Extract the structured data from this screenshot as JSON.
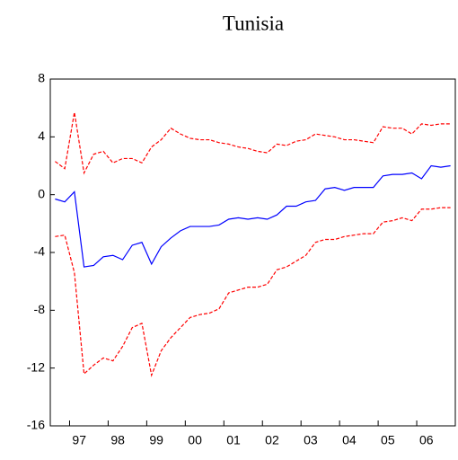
{
  "chart_data": {
    "type": "line",
    "title": "Tunisia",
    "categories": [
      null,
      null,
      null,
      "97",
      null,
      null,
      null,
      "98",
      null,
      null,
      null,
      "99",
      null,
      null,
      null,
      "00",
      null,
      null,
      null,
      "01",
      null,
      null,
      null,
      "02",
      null,
      null,
      null,
      "03",
      null,
      null,
      null,
      "04",
      null,
      null,
      null,
      "05",
      null,
      null,
      null,
      "06",
      null,
      null
    ],
    "ylim": [
      -16,
      8
    ],
    "yticks": [
      -16,
      -12,
      -8,
      -4,
      0,
      4,
      8
    ],
    "series": [
      {
        "color": "#0000ff",
        "dashed": false,
        "values": [
          -0.3,
          -0.5,
          0.2,
          -5.0,
          -4.9,
          -4.3,
          -4.2,
          -4.5,
          -3.5,
          -3.3,
          -4.8,
          -3.6,
          -3.0,
          -2.5,
          -2.2,
          -2.2,
          -2.2,
          -2.1,
          -1.7,
          -1.6,
          -1.7,
          -1.6,
          -1.7,
          -1.4,
          -0.8,
          -0.8,
          -0.5,
          -0.4,
          0.4,
          0.5,
          0.3,
          0.5,
          0.5,
          0.5,
          1.3,
          1.4,
          1.4,
          1.5,
          1.1,
          2.0,
          1.9,
          2.0
        ]
      },
      {
        "color": "#ff0000",
        "dashed": true,
        "values": [
          2.3,
          1.8,
          5.7,
          1.5,
          2.8,
          3.0,
          2.2,
          2.5,
          2.5,
          2.2,
          3.3,
          3.8,
          4.6,
          4.2,
          3.9,
          3.8,
          3.8,
          3.6,
          3.5,
          3.3,
          3.2,
          3.0,
          2.9,
          3.5,
          3.4,
          3.7,
          3.8,
          4.2,
          4.1,
          4.0,
          3.8,
          3.8,
          3.7,
          3.6,
          4.7,
          4.6,
          4.6,
          4.2,
          4.9,
          4.8,
          4.9,
          4.9
        ]
      },
      {
        "color": "#ff0000",
        "dashed": true,
        "values": [
          -2.9,
          -2.8,
          -5.4,
          -12.4,
          -11.8,
          -11.3,
          -11.5,
          -10.5,
          -9.2,
          -8.9,
          -12.5,
          -10.8,
          -9.9,
          -9.2,
          -8.5,
          -8.3,
          -8.2,
          -7.9,
          -6.8,
          -6.6,
          -6.4,
          -6.4,
          -6.2,
          -5.2,
          -5.0,
          -4.6,
          -4.2,
          -3.3,
          -3.1,
          -3.1,
          -2.9,
          -2.8,
          -2.7,
          -2.7,
          -1.9,
          -1.8,
          -1.6,
          -1.8,
          -1.0,
          -1.0,
          -0.9,
          -0.9
        ]
      }
    ]
  }
}
